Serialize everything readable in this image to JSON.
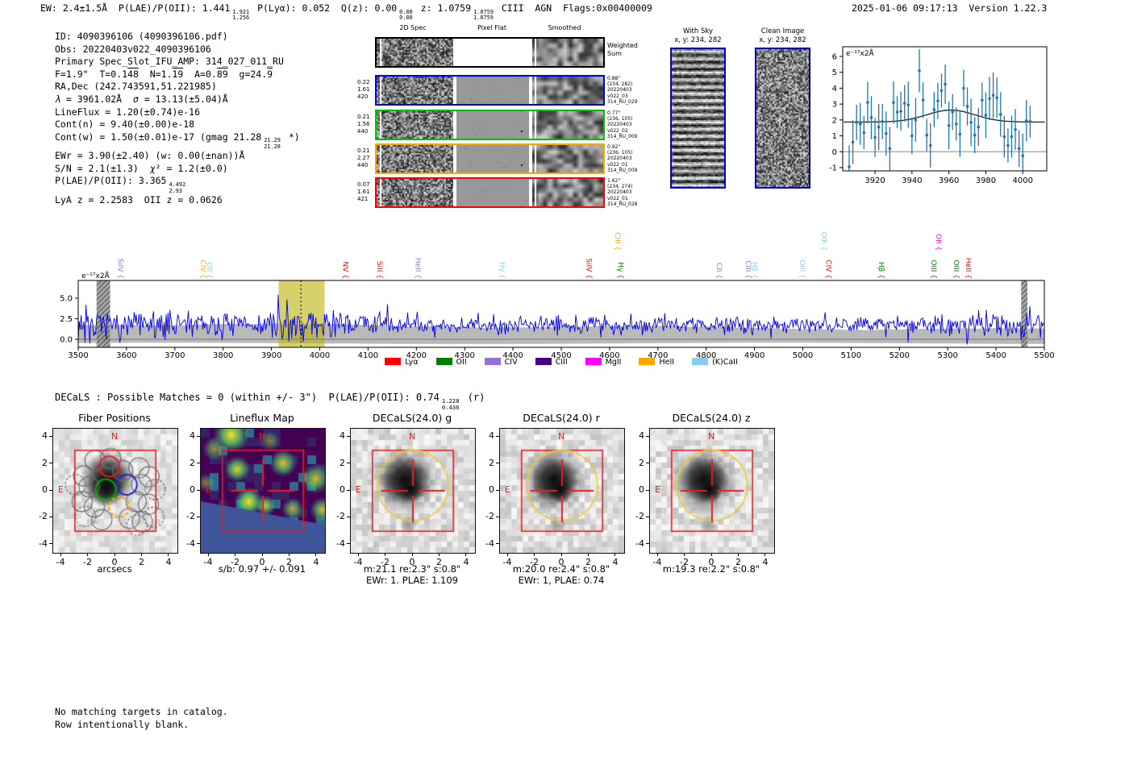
{
  "header": {
    "left_parts": [
      {
        "t": "EW: 2.4±1.5Å  P(LAE)/P(OII): 1.441"
      },
      {
        "fr": [
          "1.921",
          "1.256"
        ]
      },
      {
        "t": " P(Lyα): 0.052  Q(z): 0.00"
      },
      {
        "fr": [
          "0.00",
          "0.00"
        ]
      },
      {
        "t": " z: 1.0759"
      },
      {
        "fr": [
          "1.0759",
          "1.0759"
        ]
      },
      {
        "t": " CIII  AGN  Flags:0x00400009"
      }
    ],
    "timestamp": "2025-01-06 09:17:13",
    "version": "Version 1.22.3"
  },
  "info": {
    "lines": [
      [
        {
          "t": "ID: 4090396106 (4090396106.pdf)"
        }
      ],
      [
        {
          "t": "Obs: 20220403v022_4090396106"
        }
      ],
      [
        {
          "t": "Primary Spec_Slot_IFU_AMP: 314_027_011_RU"
        }
      ],
      [
        {
          "t": "F=1.9\"  T=0.1"
        },
        {
          "ov": "48"
        },
        {
          "t": "  N=1."
        },
        {
          "ov": "19"
        },
        {
          "t": "  A=0."
        },
        {
          "ov": "89"
        },
        {
          "t": "  g=24."
        },
        {
          "ov": "9"
        }
      ],
      [
        {
          "t": "RA,Dec (242.743591,51.221985)"
        }
      ],
      [
        {
          "i": "λ"
        },
        {
          "t": " = 3961.02Å  "
        },
        {
          "i": "σ"
        },
        {
          "t": " = 13.13(±5.04)Å"
        }
      ],
      [
        {
          "t": "LineFlux = 1.20(±0.74)e-16"
        }
      ],
      [
        {
          "t": "Cont(n) = 9.40(±0.00)e-18"
        }
      ],
      [
        {
          "t": "Cont(w) = 1.50(±0.01)e-17 (gmag 21.28"
        },
        {
          "fr": [
            "21.29",
            "21.28"
          ]
        },
        {
          "t": " *)"
        }
      ],
      [
        {
          "t": "EWr = 3.90(±2.40) (w: 0.00(±nan))Å"
        }
      ],
      [
        {
          "t": "S/N = 2.1(±1.3)  "
        },
        {
          "i": "χ"
        },
        {
          "t": "² = 1.2(±0.0)"
        }
      ],
      [
        {
          "t": "P(LAE)/P(OII): 3.365"
        },
        {
          "fr": [
            "4.492",
            "2.93"
          ]
        }
      ],
      [
        {
          "t": "LyA z = 2.2583  OII z = 0.0626"
        }
      ]
    ]
  },
  "cutouts": {
    "column_titles": [
      "2D Spec",
      "Pixel Flat",
      "Smoothed"
    ],
    "rows": [
      {
        "border": "#000000",
        "left": [],
        "right": [
          "Weighted",
          "Sum"
        ],
        "weighted": true,
        "seed": 11
      },
      {
        "border": "#0000ee",
        "left": [
          "0.22",
          "1.61",
          "420"
        ],
        "right": [
          "0.88\"",
          "(234, 282)",
          "20220403",
          "v022_03",
          "314_RU_029"
        ],
        "weighted": false,
        "seed": 12
      },
      {
        "border": "#00c400",
        "left": [
          "0.21",
          "1.56",
          "440"
        ],
        "right": [
          "0.77\"",
          "(236, 105)",
          "20220403",
          "v022_02",
          "314_RU_009"
        ],
        "weighted": false,
        "seed": 13
      },
      {
        "border": "#ffa500",
        "left": [
          "0.21",
          "2.27",
          "440"
        ],
        "right": [
          "0.92\"",
          "(236, 105)",
          "20220403",
          "v022_01",
          "314_RU_009"
        ],
        "weighted": false,
        "seed": 14
      },
      {
        "border": "#ff0000",
        "left": [
          "0.07",
          "1.61",
          "421"
        ],
        "right": [
          "1.62\"",
          "(234, 274)",
          "20220403",
          "v022_01",
          "314_RU_028"
        ],
        "weighted": false,
        "seed": 15
      }
    ]
  },
  "sky": {
    "border": "#0000cc",
    "panels": [
      {
        "title": "With Sky",
        "coords": "x, y: 234, 282",
        "style": "stripes"
      },
      {
        "title": "Clean Image",
        "coords": "x, y: 234, 282",
        "style": "noise"
      }
    ]
  },
  "chart_data": [
    {
      "type": "scatter",
      "id": "line_fit_plot",
      "title": "",
      "unit_label": "e⁻¹⁷x2Å",
      "xlim": [
        3902.5,
        4013
      ],
      "ylim": [
        -1.2,
        6.6
      ],
      "xticks": [
        3920,
        3940,
        3960,
        3980,
        4000
      ],
      "yticks": [
        -1,
        0,
        1,
        2,
        3,
        4,
        5,
        6
      ],
      "point_color": "#1f77b4",
      "x": [
        3906,
        3908,
        3910,
        3912,
        3914,
        3916,
        3918,
        3920,
        3922,
        3924,
        3926,
        3928,
        3930,
        3932,
        3934,
        3936,
        3938,
        3940,
        3942,
        3944,
        3946,
        3948,
        3950,
        3952,
        3954,
        3956,
        3958,
        3960,
        3962,
        3964,
        3966,
        3968,
        3970,
        3972,
        3974,
        3976,
        3978,
        3980,
        3982,
        3984,
        3986,
        3988,
        3990,
        3992,
        3994,
        3996,
        3998,
        4000,
        4002,
        4004
      ],
      "y": [
        -0.95,
        0.6,
        1.85,
        1.75,
        1.2,
        3.1,
        2.15,
        0.9,
        1.55,
        1.9,
        1.15,
        0.2,
        3.1,
        2.5,
        2.55,
        3.05,
        2.95,
        1.0,
        2.0,
        5.1,
        3.25,
        1.05,
        0.4,
        2.65,
        3.2,
        3.85,
        4.25,
        1.65,
        2.5,
        1.75,
        1.1,
        4.0,
        2.85,
        1.85,
        1.05,
        1.55,
        3.25,
        2.3,
        3.35,
        3.55,
        3.4,
        2.35,
        0.95,
        0.4,
        0.95,
        1.4,
        0.2,
        -0.25,
        1.95,
        1.9
      ],
      "yerr": 1.25,
      "fit": {
        "type": "gaussian",
        "baseline": 1.87,
        "amplitude": 0.75,
        "center": 3961,
        "sigma": 13,
        "color": "#2a2a2a"
      }
    },
    {
      "type": "line",
      "id": "full_spectrum_plot",
      "unit_label": "e⁻¹⁷x2Å",
      "xlim": [
        3500,
        5500
      ],
      "xticks": [
        3500,
        3600,
        3700,
        3800,
        3900,
        4000,
        4100,
        4200,
        4300,
        4400,
        4500,
        4600,
        4700,
        4800,
        4900,
        5000,
        5100,
        5200,
        5300,
        5400,
        5500
      ],
      "yticks": [
        "0.0",
        "2.5",
        "5.0"
      ],
      "line_color": "#0000ee",
      "signal_region": {
        "xmin": 3915,
        "xmax": 4010,
        "center_line": 3961,
        "color": "#bdb410"
      },
      "masked_regions": [
        [
          3538,
          3566
        ],
        [
          5452,
          5465
        ]
      ],
      "error_band": {
        "top_left": 1.9,
        "top_right": 1.15,
        "bottom": -0.5,
        "color": "#b9b9b9"
      },
      "noise_model": {
        "baseline": 1.75,
        "seed": 7
      },
      "line_labels": [
        {
          "name": "SiIV",
          "wavelength": 3583,
          "color": "#9370db",
          "raised": false
        },
        {
          "name": "CIV",
          "wavelength": 3754,
          "color": "#ffa500",
          "raised": false
        },
        {
          "name": "OII",
          "wavelength": 3767,
          "color": "#87ceeb",
          "raised": false
        },
        {
          "name": "NV",
          "wavelength": 4048,
          "color": "#ff0000",
          "raised": false
        },
        {
          "name": "SiII",
          "wavelength": 4119,
          "color": "#ff0000",
          "raised": false
        },
        {
          "name": "HeII",
          "wavelength": 4199,
          "color": "#9370db",
          "raised": false
        },
        {
          "name": "Hγ",
          "wavelength": 4373,
          "color": "#87ceeb",
          "raised": false
        },
        {
          "name": "SiIV",
          "wavelength": 4553,
          "color": "#ff0000",
          "raised": false
        },
        {
          "name": "CIII",
          "wavelength": 4612,
          "color": "#ffa500",
          "raised": true
        },
        {
          "name": "Hγ",
          "wavelength": 4618,
          "color": "#008000",
          "raised": false
        },
        {
          "name": "CII",
          "wavelength": 4822,
          "color": "#9370db",
          "raised": false
        },
        {
          "name": "CIII",
          "wavelength": 4882,
          "color": "#9370db",
          "raised": false
        },
        {
          "name": "Hβ",
          "wavelength": 4896,
          "color": "#87ceeb",
          "raised": false
        },
        {
          "name": "OIII",
          "wavelength": 4994,
          "color": "#87ceeb",
          "raised": false
        },
        {
          "name": "OIII",
          "wavelength": 5039,
          "color": "#87ceeb",
          "raised": true
        },
        {
          "name": "CIV",
          "wavelength": 5048,
          "color": "#ff0000",
          "raised": false
        },
        {
          "name": "Hβ",
          "wavelength": 5158,
          "color": "#008000",
          "raised": false
        },
        {
          "name": "OIII",
          "wavelength": 5266,
          "color": "#008000",
          "raised": false
        },
        {
          "name": "OII",
          "wavelength": 5276,
          "color": "#ff00ff",
          "raised": true
        },
        {
          "name": "OIII",
          "wavelength": 5313,
          "color": "#008000",
          "raised": false
        },
        {
          "name": "HeII",
          "wavelength": 5338,
          "color": "#ff0000",
          "raised": false
        }
      ],
      "legend": [
        {
          "label": "Lyα",
          "color": "#ff0000"
        },
        {
          "label": "OII",
          "color": "#008000"
        },
        {
          "label": "CIV",
          "color": "#9370db"
        },
        {
          "label": "CIII",
          "color": "#4b0082"
        },
        {
          "label": "MgII",
          "color": "#ff00ff"
        },
        {
          "label": "HeII",
          "color": "#ffa500"
        },
        {
          "label": "(K)CaII",
          "color": "#87ceeb"
        }
      ]
    }
  ],
  "decals": {
    "header_parts": [
      {
        "t": "DECaLS : Possible Matches = 0 (within +/- 3\")  P(LAE)/P(OII): 0.74"
      },
      {
        "fr": [
          "1.228",
          "0.436"
        ]
      },
      {
        "t": " (r)"
      }
    ]
  },
  "panels": {
    "ticks": [
      4,
      2,
      0,
      -2,
      -4
    ],
    "xticks": [
      -4,
      -2,
      0,
      2,
      4
    ],
    "compass": {
      "north": "N",
      "east": "E"
    },
    "items": [
      {
        "title": "Fiber Positions",
        "caption": "arcsecs",
        "caption2": "",
        "type": "fiber",
        "seed": 21
      },
      {
        "title": "Lineflux Map",
        "caption": "s/b: 0.97 +/- 0.091",
        "caption2": "",
        "type": "lineflux",
        "seed": 22
      },
      {
        "title": "DECaLS(24.0) g",
        "caption": "m:21.1 re:2.3\" s:0.8\"",
        "caption2": "EWr: 1. PLAE: 1.109",
        "type": "cutout",
        "seed": 31
      },
      {
        "title": "DECaLS(24.0) r",
        "caption": "m:20.0 re:2.4\" s:0.8\"",
        "caption2": "EWr: 1, PLAE: 0.74",
        "type": "cutout",
        "seed": 32
      },
      {
        "title": "DECaLS(24.0) z",
        "caption": "m:19.3 re:2.2\" s:0.8\"",
        "caption2": "",
        "type": "cutout",
        "seed": 33
      }
    ]
  },
  "footer": {
    "lines": [
      "No matching targets in catalog.",
      "Row intentionally blank."
    ]
  }
}
